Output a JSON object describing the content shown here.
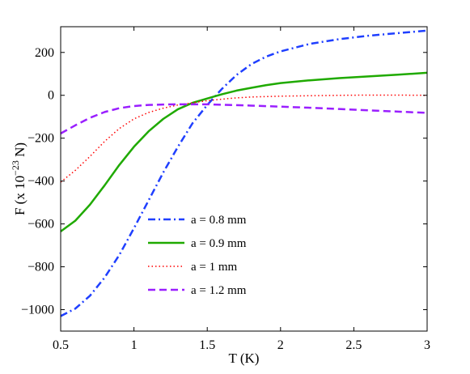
{
  "chart_data": {
    "type": "line",
    "xlabel": "T (K)",
    "ylabel": {
      "prefix": "F  (x 10",
      "exponent": "−23",
      "suffix": " N)"
    },
    "xlim": [
      0.5,
      3.0
    ],
    "ylim": [
      -1100,
      320
    ],
    "xticks": [
      {
        "value": 0.5,
        "label": "0.5"
      },
      {
        "value": 1.0,
        "label": "1"
      },
      {
        "value": 1.5,
        "label": "1.5"
      },
      {
        "value": 2.0,
        "label": "2"
      },
      {
        "value": 2.5,
        "label": "2.5"
      },
      {
        "value": 3.0,
        "label": "3"
      }
    ],
    "yticks": [
      {
        "value": -1000,
        "label": "−1000"
      },
      {
        "value": -800,
        "label": "−800"
      },
      {
        "value": -600,
        "label": "−600"
      },
      {
        "value": -400,
        "label": "−400"
      },
      {
        "value": -200,
        "label": "−200"
      },
      {
        "value": 0,
        "label": "0"
      },
      {
        "value": 200,
        "label": "200"
      }
    ],
    "grid": false,
    "legend_position": "lower-center",
    "series": [
      {
        "name": "a = 0.8 mm",
        "color": "#1f3fff",
        "style": "dashdot",
        "x": [
          0.5,
          0.6,
          0.7,
          0.8,
          0.9,
          1.0,
          1.1,
          1.2,
          1.3,
          1.4,
          1.5,
          1.6,
          1.7,
          1.8,
          1.9,
          2.0,
          2.2,
          2.4,
          2.6,
          2.8,
          3.0
        ],
        "y": [
          -1030,
          -995,
          -935,
          -850,
          -745,
          -620,
          -490,
          -360,
          -240,
          -130,
          -45,
          30,
          95,
          145,
          180,
          205,
          240,
          262,
          278,
          290,
          302
        ]
      },
      {
        "name": "a = 0.9 mm",
        "color": "#1faa00",
        "style": "solid",
        "x": [
          0.5,
          0.6,
          0.7,
          0.8,
          0.9,
          1.0,
          1.1,
          1.2,
          1.3,
          1.4,
          1.5,
          1.6,
          1.7,
          1.8,
          1.9,
          2.0,
          2.2,
          2.4,
          2.6,
          2.8,
          3.0
        ],
        "y": [
          -635,
          -585,
          -510,
          -420,
          -325,
          -240,
          -168,
          -110,
          -65,
          -35,
          -15,
          5,
          22,
          35,
          47,
          57,
          70,
          80,
          88,
          96,
          105
        ]
      },
      {
        "name": "a = 1 mm",
        "color": "#ff0000",
        "style": "dotted",
        "x": [
          0.5,
          0.6,
          0.7,
          0.8,
          0.9,
          1.0,
          1.1,
          1.2,
          1.3,
          1.4,
          1.5,
          1.6,
          1.7,
          1.8,
          2.0,
          2.2,
          2.4,
          2.6,
          2.8,
          3.0
        ],
        "y": [
          -405,
          -350,
          -285,
          -215,
          -155,
          -110,
          -80,
          -60,
          -45,
          -35,
          -25,
          -18,
          -12,
          -8,
          -4,
          -2,
          0,
          1,
          1,
          0
        ]
      },
      {
        "name": "a = 1.2 mm",
        "color": "#9a1fff",
        "style": "dashed",
        "x": [
          0.5,
          0.6,
          0.7,
          0.8,
          0.9,
          1.0,
          1.1,
          1.2,
          1.3,
          1.4,
          1.5,
          1.6,
          1.8,
          2.0,
          2.2,
          2.4,
          2.6,
          2.8,
          3.0
        ],
        "y": [
          -178,
          -140,
          -105,
          -78,
          -60,
          -50,
          -45,
          -43,
          -42,
          -42,
          -42,
          -44,
          -48,
          -53,
          -58,
          -64,
          -70,
          -76,
          -82
        ]
      }
    ]
  }
}
